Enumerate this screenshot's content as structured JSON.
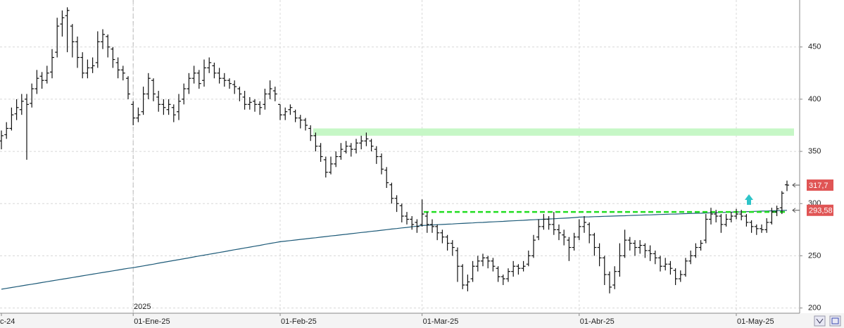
{
  "chart_data": {
    "type": "ohlc",
    "year_label": "2025",
    "categories": [
      "c-24",
      null,
      null,
      null,
      null,
      null,
      null,
      null,
      null,
      null,
      null,
      null,
      null,
      null,
      null,
      null,
      null,
      null,
      null,
      null,
      null,
      null,
      null,
      null,
      null,
      null,
      "01-Ene-25",
      null,
      null,
      null,
      null,
      null,
      null,
      null,
      null,
      null,
      null,
      null,
      null,
      null,
      null,
      null,
      null,
      null,
      null,
      null,
      null,
      null,
      null,
      null,
      null,
      null,
      null,
      null,
      null,
      "01-Feb-25",
      null,
      null,
      null,
      null,
      null,
      null,
      null,
      null,
      null,
      null,
      null,
      null,
      null,
      null,
      null,
      null,
      null,
      null,
      null,
      null,
      null,
      null,
      null,
      null,
      null,
      null,
      null,
      "01-Mar-25",
      null,
      null,
      null,
      null,
      null,
      null,
      null,
      null,
      null,
      null,
      null,
      null,
      null,
      null,
      null,
      null,
      null,
      null,
      null,
      null,
      null,
      null,
      null,
      null,
      null,
      null,
      null,
      null,
      null,
      null,
      "01-Abr-25",
      null,
      null,
      null,
      null,
      null,
      null,
      null,
      null,
      null,
      null,
      null,
      null,
      null,
      null,
      null,
      null,
      null,
      null,
      null,
      null,
      null,
      null,
      null,
      null,
      null,
      null,
      null,
      null,
      null,
      null,
      "01-May-25",
      null,
      null,
      null,
      null,
      null,
      null,
      null,
      null,
      null,
      null
    ],
    "values": [
      [
        360,
        370,
        352,
        365
      ],
      [
        366,
        378,
        362,
        372
      ],
      [
        372,
        392,
        370,
        385
      ],
      [
        386,
        400,
        380,
        392
      ],
      [
        390,
        405,
        385,
        398
      ],
      [
        400,
        405,
        342,
        395
      ],
      [
        396,
        415,
        392,
        410
      ],
      [
        410,
        428,
        405,
        420
      ],
      [
        422,
        426,
        410,
        418
      ],
      [
        418,
        432,
        415,
        425
      ],
      [
        426,
        448,
        420,
        440
      ],
      [
        445,
        478,
        440,
        470
      ],
      [
        472,
        485,
        460,
        478
      ],
      [
        480,
        488,
        445,
        485
      ],
      [
        470,
        472,
        440,
        455
      ],
      [
        455,
        460,
        430,
        440
      ],
      [
        440,
        445,
        420,
        425
      ],
      [
        425,
        438,
        420,
        430
      ],
      [
        430,
        440,
        425,
        432
      ],
      [
        435,
        465,
        430,
        455
      ],
      [
        455,
        467,
        448,
        462
      ],
      [
        460,
        462,
        440,
        450
      ],
      [
        448,
        450,
        430,
        438
      ],
      [
        435,
        440,
        420,
        428
      ],
      [
        428,
        432,
        418,
        425
      ],
      [
        420,
        422,
        400,
        405
      ],
      [
        395,
        398,
        375,
        382
      ],
      [
        382,
        392,
        378,
        385
      ],
      [
        388,
        412,
        385,
        405
      ],
      [
        405,
        425,
        400,
        420
      ],
      [
        418,
        420,
        398,
        405
      ],
      [
        402,
        408,
        388,
        395
      ],
      [
        395,
        400,
        385,
        392
      ],
      [
        390,
        400,
        385,
        395
      ],
      [
        392,
        395,
        378,
        385
      ],
      [
        388,
        405,
        380,
        398
      ],
      [
        400,
        415,
        395,
        410
      ],
      [
        410,
        425,
        405,
        420
      ],
      [
        420,
        432,
        415,
        425
      ],
      [
        425,
        428,
        410,
        415
      ],
      [
        418,
        438,
        412,
        430
      ],
      [
        430,
        440,
        425,
        435
      ],
      [
        432,
        435,
        420,
        425
      ],
      [
        425,
        430,
        415,
        420
      ],
      [
        420,
        425,
        412,
        418
      ],
      [
        418,
        420,
        410,
        415
      ],
      [
        414,
        418,
        405,
        412
      ],
      [
        410,
        412,
        398,
        405
      ],
      [
        402,
        408,
        390,
        395
      ],
      [
        395,
        402,
        390,
        397
      ],
      [
        398,
        400,
        388,
        395
      ],
      [
        395,
        398,
        385,
        392
      ],
      [
        395,
        410,
        390,
        405
      ],
      [
        405,
        418,
        400,
        410
      ],
      [
        408,
        412,
        398,
        405
      ],
      [
        395,
        395,
        380,
        385
      ],
      [
        385,
        392,
        380,
        388
      ],
      [
        390,
        395,
        385,
        392
      ],
      [
        388,
        390,
        378,
        382
      ],
      [
        382,
        385,
        372,
        380
      ],
      [
        380,
        382,
        370,
        375
      ],
      [
        372,
        375,
        360,
        365
      ],
      [
        365,
        368,
        350,
        355
      ],
      [
        355,
        358,
        340,
        345
      ],
      [
        342,
        345,
        325,
        330
      ],
      [
        330,
        345,
        328,
        338
      ],
      [
        338,
        350,
        335,
        345
      ],
      [
        345,
        358,
        342,
        352
      ],
      [
        350,
        360,
        348,
        355
      ],
      [
        355,
        358,
        345,
        352
      ],
      [
        352,
        362,
        348,
        358
      ],
      [
        358,
        365,
        352,
        360
      ],
      [
        360,
        368,
        355,
        362
      ],
      [
        360,
        362,
        350,
        355
      ],
      [
        352,
        355,
        338,
        345
      ],
      [
        345,
        348,
        328,
        333
      ],
      [
        332,
        335,
        315,
        320
      ],
      [
        318,
        320,
        300,
        305
      ],
      [
        305,
        308,
        292,
        300
      ],
      [
        298,
        300,
        282,
        288
      ],
      [
        288,
        292,
        280,
        285
      ],
      [
        285,
        288,
        275,
        280
      ],
      [
        282,
        285,
        272,
        278
      ],
      [
        280,
        304,
        278,
        290
      ],
      [
        288,
        292,
        272,
        280
      ],
      [
        280,
        285,
        272,
        278
      ],
      [
        278,
        280,
        265,
        272
      ],
      [
        272,
        275,
        262,
        268
      ],
      [
        268,
        270,
        255,
        262
      ],
      [
        262,
        265,
        250,
        258
      ],
      [
        255,
        258,
        225,
        240
      ],
      [
        240,
        242,
        218,
        222
      ],
      [
        222,
        232,
        216,
        225
      ],
      [
        228,
        245,
        225,
        240
      ],
      [
        240,
        250,
        235,
        245
      ],
      [
        245,
        252,
        240,
        248
      ],
      [
        248,
        250,
        238,
        245
      ],
      [
        245,
        248,
        235,
        240
      ],
      [
        238,
        240,
        225,
        230
      ],
      [
        230,
        232,
        222,
        228
      ],
      [
        228,
        238,
        225,
        235
      ],
      [
        235,
        245,
        230,
        240
      ],
      [
        240,
        242,
        232,
        238
      ],
      [
        238,
        245,
        235,
        240
      ],
      [
        242,
        255,
        240,
        250
      ],
      [
        250,
        270,
        248,
        265
      ],
      [
        268,
        285,
        265,
        278
      ],
      [
        278,
        290,
        275,
        285
      ],
      [
        285,
        288,
        275,
        280
      ],
      [
        280,
        292,
        270,
        275
      ],
      [
        275,
        280,
        265,
        272
      ],
      [
        270,
        275,
        260,
        268
      ],
      [
        265,
        268,
        245,
        258
      ],
      [
        258,
        272,
        255,
        268
      ],
      [
        268,
        285,
        265,
        278
      ],
      [
        278,
        288,
        272,
        282
      ],
      [
        280,
        282,
        262,
        270
      ],
      [
        270,
        272,
        250,
        258
      ],
      [
        258,
        262,
        240,
        248
      ],
      [
        248,
        250,
        222,
        232
      ],
      [
        232,
        235,
        214,
        220
      ],
      [
        222,
        240,
        218,
        235
      ],
      [
        235,
        262,
        230,
        250
      ],
      [
        250,
        275,
        248,
        265
      ],
      [
        265,
        268,
        255,
        262
      ],
      [
        262,
        265,
        250,
        258
      ],
      [
        258,
        265,
        252,
        260
      ],
      [
        260,
        262,
        248,
        255
      ],
      [
        255,
        260,
        245,
        252
      ],
      [
        252,
        255,
        242,
        248
      ],
      [
        248,
        250,
        235,
        240
      ],
      [
        240,
        248,
        236,
        242
      ],
      [
        242,
        245,
        232,
        238
      ],
      [
        236,
        238,
        222,
        228
      ],
      [
        228,
        236,
        225,
        232
      ],
      [
        232,
        248,
        230,
        245
      ],
      [
        245,
        255,
        242,
        250
      ],
      [
        250,
        262,
        248,
        258
      ],
      [
        258,
        265,
        255,
        262
      ],
      [
        265,
        290,
        262,
        285
      ],
      [
        285,
        296,
        280,
        290
      ],
      [
        290,
        294,
        282,
        288
      ],
      [
        288,
        290,
        272,
        280
      ],
      [
        280,
        290,
        278,
        285
      ],
      [
        285,
        292,
        282,
        288
      ],
      [
        288,
        295,
        285,
        290
      ],
      [
        290,
        294,
        284,
        288
      ],
      [
        288,
        290,
        278,
        282
      ],
      [
        282,
        284,
        272,
        278
      ],
      [
        278,
        280,
        270,
        276
      ],
      [
        276,
        280,
        272,
        275
      ],
      [
        275,
        286,
        272,
        282
      ],
      [
        282,
        296,
        280,
        292
      ],
      [
        292,
        298,
        288,
        295
      ],
      [
        296,
        312,
        290,
        310
      ],
      [
        318,
        322,
        312,
        317.7
      ]
    ],
    "last_value_label": "317,7",
    "color": "#111111",
    "ma": {
      "color": "#1d5a78",
      "last_value_label": "293,58",
      "values": [
        218,
        218.8,
        219.6,
        220.4,
        221.2,
        222,
        222.8,
        223.6,
        224.4,
        225.2,
        226,
        226.8,
        227.6,
        228.4,
        229.2,
        230,
        230.8,
        231.6,
        232.4,
        233.2,
        234,
        234.8,
        235.6,
        236.4,
        237.2,
        238,
        238.6,
        239.5,
        240.3,
        241.2,
        242,
        242.9,
        243.8,
        244.6,
        245.5,
        246.3,
        247.2,
        248,
        248.9,
        249.8,
        250.6,
        251.5,
        252.3,
        253.2,
        254,
        254.9,
        255.8,
        256.6,
        257.5,
        258.3,
        259.2,
        260,
        260.9,
        261.8,
        262.6,
        263.5,
        264,
        264.6,
        265.1,
        265.7,
        266.2,
        266.8,
        267.3,
        267.9,
        268.4,
        269,
        269.5,
        270.1,
        270.6,
        271.2,
        271.7,
        272.3,
        272.8,
        273.4,
        273.9,
        274.5,
        275,
        275.6,
        276.1,
        276.7,
        277.2,
        277.8,
        278.4,
        279,
        279.3,
        279.5,
        279.8,
        280,
        280.3,
        280.5,
        280.8,
        281,
        281.3,
        281.5,
        281.8,
        282,
        282.3,
        282.5,
        282.8,
        283,
        283.3,
        283.5,
        283.8,
        284,
        284.3,
        284.5,
        284.8,
        285,
        285.3,
        285.5,
        285.8,
        286,
        286.3,
        286.6,
        287,
        287.2,
        287.3,
        287.5,
        287.6,
        287.8,
        288,
        288.1,
        288.3,
        288.4,
        288.6,
        288.8,
        288.9,
        289.1,
        289.2,
        289.4,
        289.6,
        289.7,
        289.9,
        290,
        290.2,
        290.4,
        290.5,
        290.7,
        290.8,
        291,
        291.2,
        291.3,
        291.5,
        291.6,
        291.8,
        292,
        292.1,
        292.3,
        292.4,
        292.6,
        292.8,
        292.9,
        293.1,
        293.2,
        293.4,
        293.58
      ]
    },
    "resistance_zone": {
      "values": [
        365,
        372
      ],
      "color": "#c6f7c6"
    },
    "support_line": {
      "value": 292,
      "color": "#22dd22"
    },
    "ylim": [
      195,
      495
    ],
    "yticks": [
      200,
      250,
      300,
      350,
      400,
      450
    ],
    "grid": true
  }
}
